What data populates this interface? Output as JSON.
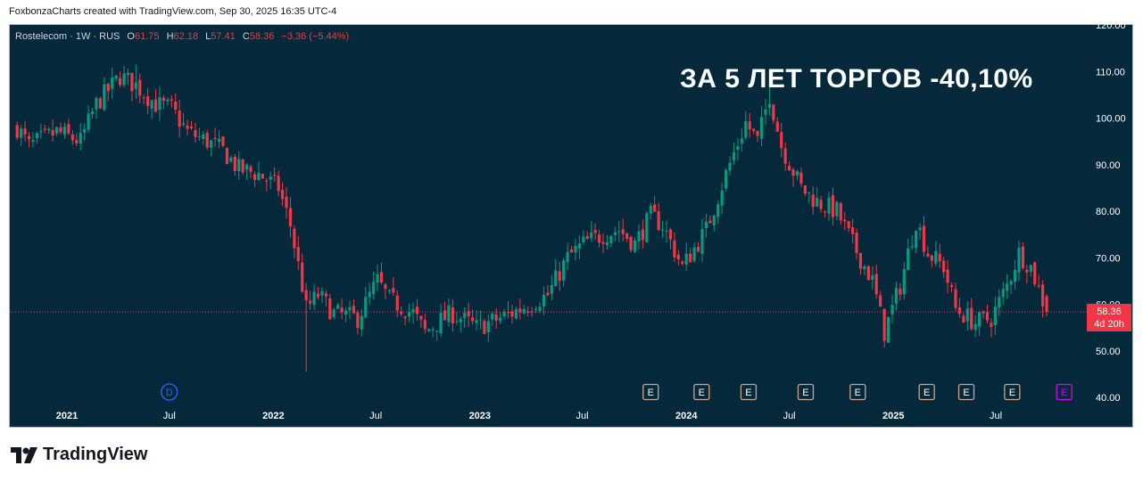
{
  "attribution": "FoxbonzaCharts created with TradingView.com, Sep 30, 2025 16:35 UTC-4",
  "legend": {
    "symbol": "Rostelecom · 1W · RUS",
    "open_label": "O",
    "open": "61.75",
    "high_label": "H",
    "high": "62.18",
    "low_label": "L",
    "low": "57.41",
    "close_label": "C",
    "close": "58.36",
    "change": "−3.36 (−5.44%)"
  },
  "headline": "ЗА 5 ЛЕТ ТОРГОВ -40,10%",
  "price_badge": {
    "price": "58.36",
    "countdown": "4d 20h"
  },
  "logo_text": "TradingView",
  "colors": {
    "background": "#06283b",
    "up": "#089981",
    "down": "#f23645",
    "axis_text": "#ffffff",
    "dividend": "#2962ff",
    "earnings": "#c9a48c",
    "earnings_upcoming": "#d500f9"
  },
  "chart_data": {
    "type": "candlestick",
    "interval": "1W",
    "ylim": [
      40,
      120
    ],
    "y_ticks": [
      "120.00",
      "110.00",
      "100.00",
      "90.00",
      "80.00",
      "70.00",
      "60.00",
      "50.00",
      "40.00"
    ],
    "x_ticks": [
      "2021",
      "Jul",
      "2022",
      "Jul",
      "2023",
      "Jul",
      "2024",
      "Jul",
      "2025",
      "Jul"
    ],
    "x_tick_dates": [
      "2021-01-01",
      "2021-07-01",
      "2022-01-01",
      "2022-07-01",
      "2023-01-01",
      "2023-07-01",
      "2024-01-01",
      "2024-07-01",
      "2025-01-01",
      "2025-07-01"
    ],
    "last_price": 58.36,
    "events": [
      {
        "type": "dividend",
        "label": "D",
        "date": "2021-07-01"
      },
      {
        "type": "earnings",
        "label": "E",
        "date": "2023-10-30"
      },
      {
        "type": "earnings",
        "label": "E",
        "date": "2024-01-28"
      },
      {
        "type": "earnings",
        "label": "E",
        "date": "2024-04-20"
      },
      {
        "type": "earnings",
        "label": "E",
        "date": "2024-07-30"
      },
      {
        "type": "earnings",
        "label": "E",
        "date": "2024-10-30"
      },
      {
        "type": "earnings",
        "label": "E",
        "date": "2025-03-01"
      },
      {
        "type": "earnings",
        "label": "E",
        "date": "2025-05-10"
      },
      {
        "type": "earnings",
        "label": "E",
        "date": "2025-07-30"
      },
      {
        "type": "earnings_upcoming",
        "label": "E",
        "date": "2025-10-30"
      }
    ],
    "close_keypoints": [
      [
        "2020-10-05",
        98
      ],
      [
        "2020-10-26",
        94
      ],
      [
        "2020-12-14",
        97
      ],
      [
        "2021-01-25",
        95
      ],
      [
        "2021-02-22",
        103
      ],
      [
        "2021-04-05",
        109
      ],
      [
        "2021-05-03",
        107
      ],
      [
        "2021-06-07",
        103
      ],
      [
        "2021-07-05",
        102
      ],
      [
        "2021-08-02",
        97
      ],
      [
        "2021-09-06",
        95
      ],
      [
        "2021-10-04",
        93
      ],
      [
        "2021-11-01",
        89
      ],
      [
        "2021-12-06",
        88
      ],
      [
        "2022-01-10",
        85
      ],
      [
        "2022-01-31",
        77
      ],
      [
        "2022-02-21",
        64
      ],
      [
        "2022-02-28",
        59
      ],
      [
        "2022-03-21",
        62
      ],
      [
        "2022-04-18",
        58
      ],
      [
        "2022-05-30",
        57
      ],
      [
        "2022-07-04",
        65
      ],
      [
        "2022-07-25",
        61
      ],
      [
        "2022-09-05",
        58
      ],
      [
        "2022-09-26",
        54
      ],
      [
        "2022-10-17",
        56
      ],
      [
        "2022-11-14",
        58
      ],
      [
        "2022-12-26",
        55
      ],
      [
        "2023-02-06",
        57
      ],
      [
        "2023-03-13",
        59
      ],
      [
        "2023-05-01",
        62
      ],
      [
        "2023-06-05",
        70
      ],
      [
        "2023-07-03",
        73
      ],
      [
        "2023-08-07",
        75
      ],
      [
        "2023-09-04",
        76
      ],
      [
        "2023-10-02",
        73
      ],
      [
        "2023-10-30",
        79
      ],
      [
        "2023-11-20",
        77
      ],
      [
        "2023-12-25",
        68
      ],
      [
        "2024-02-05",
        76
      ],
      [
        "2024-03-11",
        88
      ],
      [
        "2024-04-15",
        99
      ],
      [
        "2024-05-06",
        95
      ],
      [
        "2024-05-27",
        105
      ],
      [
        "2024-06-17",
        94
      ],
      [
        "2024-07-22",
        85
      ],
      [
        "2024-08-19",
        82
      ],
      [
        "2024-09-23",
        80
      ],
      [
        "2024-10-21",
        73
      ],
      [
        "2024-11-25",
        65
      ],
      [
        "2024-12-16",
        54
      ],
      [
        "2025-01-13",
        64
      ],
      [
        "2025-02-10",
        78
      ],
      [
        "2025-03-03",
        71
      ],
      [
        "2025-03-31",
        68
      ],
      [
        "2025-04-21",
        59
      ],
      [
        "2025-05-26",
        56
      ],
      [
        "2025-06-23",
        57
      ],
      [
        "2025-07-21",
        64
      ],
      [
        "2025-08-11",
        71
      ],
      [
        "2025-09-01",
        68
      ],
      [
        "2025-09-29",
        58.36
      ]
    ],
    "wick_extremes": [
      {
        "date": "2022-02-28",
        "low": 45.5
      },
      {
        "date": "2021-05-03",
        "high": 111.5
      },
      {
        "date": "2024-05-27",
        "high": 109
      }
    ],
    "last_candle": {
      "date": "2025-09-29",
      "open": 61.75,
      "high": 62.18,
      "low": 57.41,
      "close": 58.36
    }
  }
}
